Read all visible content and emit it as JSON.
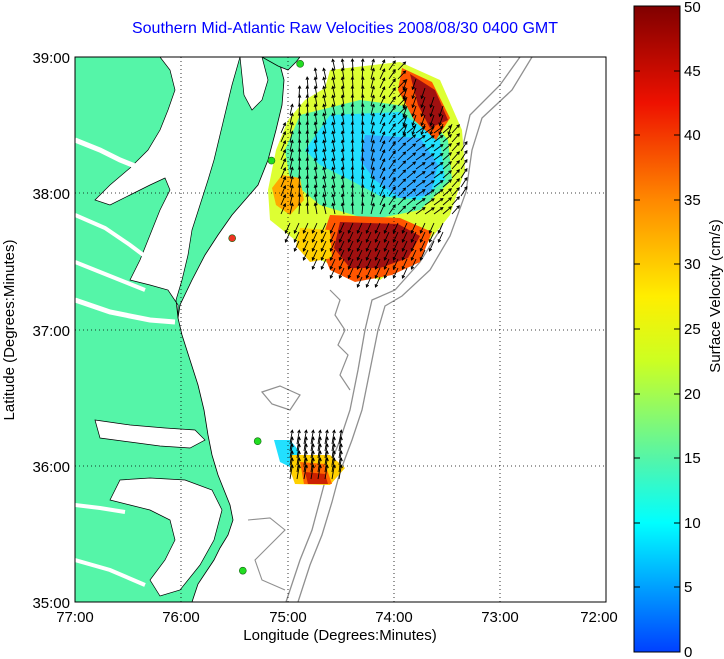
{
  "title": "Southern Mid-Atlantic Raw Velocities 2008/08/30 0400 GMT",
  "xlabel": "Longitude (Degrees:Minutes)",
  "ylabel": "Latitude (Degrees:Minutes)",
  "colorbar_label": "Surface Velocity (cm/s)",
  "x_ticks": [
    "77:00",
    "76:00",
    "75:00",
    "74:00",
    "73:00",
    "72:00"
  ],
  "y_ticks": [
    "39:00",
    "38:00",
    "37:00",
    "36:00",
    "35:00"
  ],
  "colorbar_ticks": [
    "0",
    "5",
    "10",
    "15",
    "20",
    "25",
    "30",
    "35",
    "40",
    "45",
    "50"
  ],
  "colors": {
    "land": "#55f5a8",
    "coast": "#000000",
    "bathymetry": "#909090",
    "station": "#22dd22",
    "station_alt": "#ee3322",
    "title": "#0000ff"
  },
  "chart_data": {
    "type": "map",
    "lon_range": [
      -77,
      -72
    ],
    "lat_range": [
      35,
      39
    ],
    "color_range_cm_s": [
      0,
      50
    ],
    "grid": true,
    "stations": [
      {
        "lon": -74.88,
        "lat": 38.95,
        "type": "station"
      },
      {
        "lon": -75.15,
        "lat": 38.24,
        "type": "station"
      },
      {
        "lon": -75.52,
        "lat": 37.67,
        "type": "station_alt"
      },
      {
        "lon": -75.28,
        "lat": 36.18,
        "type": "station"
      },
      {
        "lon": -75.42,
        "lat": 35.23,
        "type": "station"
      }
    ]
  }
}
